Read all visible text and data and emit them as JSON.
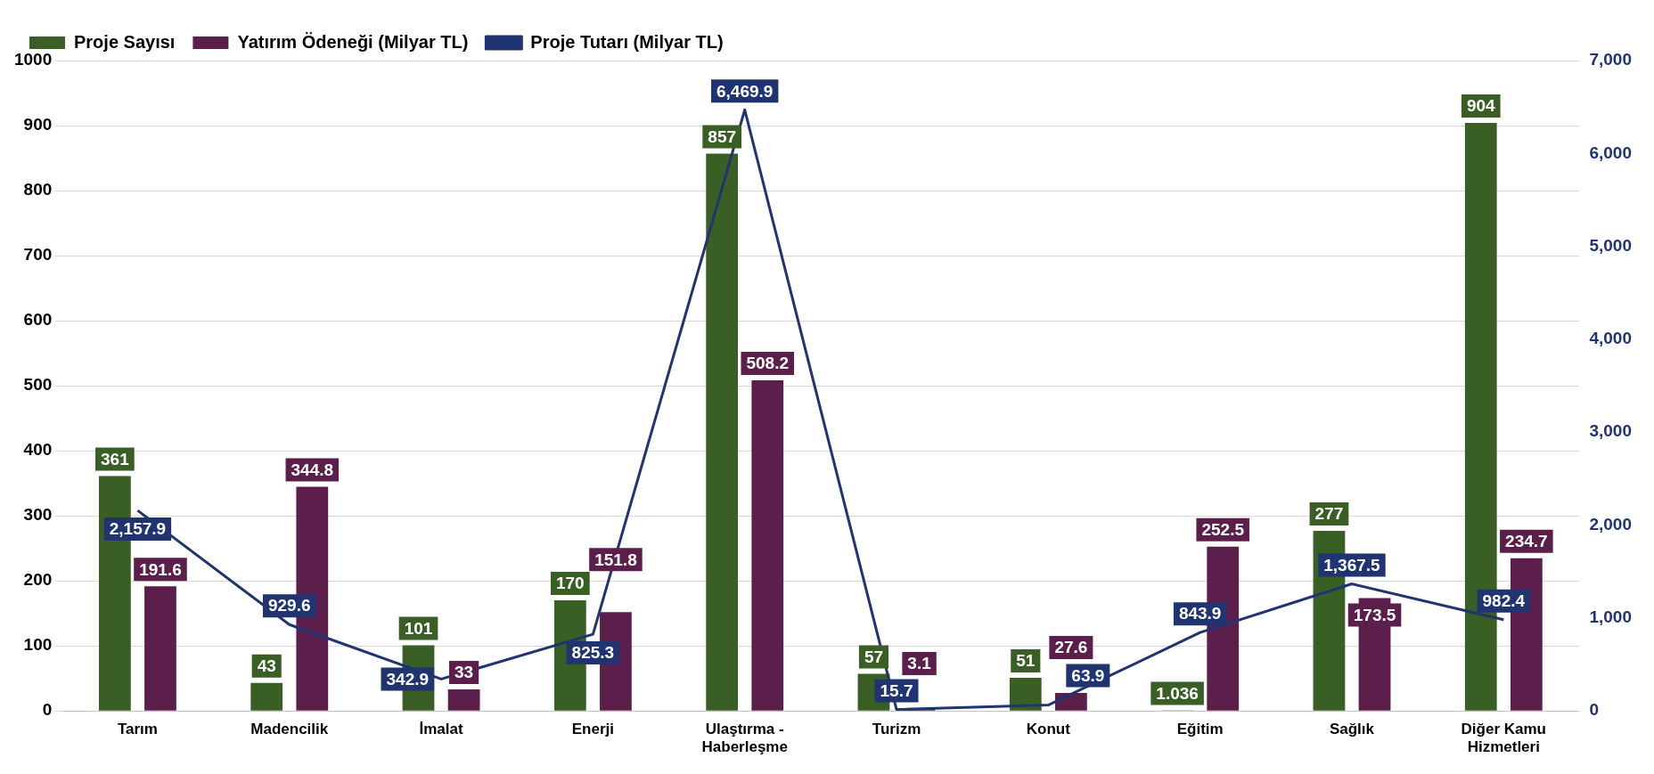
{
  "chart_data": {
    "type": "bar",
    "categories": [
      "Tarım",
      "Madencilik",
      "İmalat",
      "Enerji",
      "Ulaştırma - Haberleşme",
      "Turizm",
      "Konut",
      "Eğitim",
      "Sağlık",
      "Diğer Kamu Hizmetleri"
    ],
    "series": [
      {
        "name": "Proje Sayısı",
        "color": "#3a5f24",
        "values": [
          361,
          43,
          101,
          170,
          857,
          57,
          51,
          1.036,
          277,
          904
        ]
      },
      {
        "name": "Yatırım Ödeneği (Milyar TL)",
        "color": "#5c1f4b",
        "values": [
          191.6,
          344.8,
          33,
          151.8,
          508.2,
          3.1,
          27.6,
          252.5,
          173.5,
          234.7
        ]
      },
      {
        "name": "Proje Tutarı (Milyar TL)",
        "type": "line",
        "axis": "y2",
        "color": "#1f3471",
        "marker": "none",
        "values": [
          2157.9,
          929.6,
          342.9,
          825.3,
          6469.9,
          15.7,
          63.9,
          843.9,
          1367.5,
          982.4
        ],
        "value_labels": [
          "2,157.9",
          "929.6",
          "342.9",
          "825.3",
          "6,469.9",
          "15.7",
          "63.9",
          "843.9",
          "1,367.5",
          "982.4"
        ]
      }
    ],
    "ylim": [
      0,
      1000
    ],
    "yticks": [
      0,
      100,
      200,
      300,
      400,
      500,
      600,
      700,
      800,
      900,
      1000
    ],
    "y2lim": [
      0,
      7000
    ],
    "y2ticks": [
      0,
      {
        "value": 1000,
        "label": "1,000"
      },
      {
        "value": 2000,
        "label": "2,000"
      },
      {
        "value": 3000,
        "label": "3,000"
      },
      {
        "value": 4000,
        "label": "4,000"
      },
      {
        "value": 5000,
        "label": "5,000"
      },
      {
        "value": 6000,
        "label": "6,000"
      },
      {
        "value": 7000,
        "label": "7,000"
      }
    ],
    "grid": "y",
    "legend": "top left",
    "data_labels": true
  }
}
